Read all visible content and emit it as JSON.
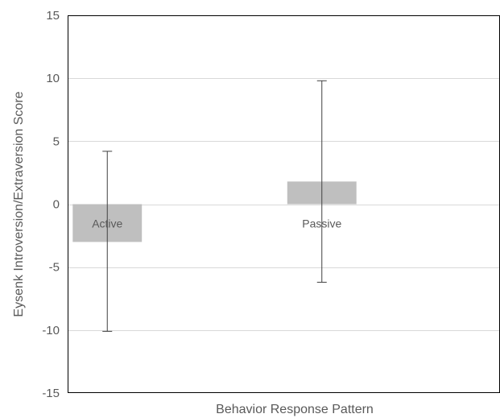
{
  "chart_data": {
    "type": "bar",
    "xlabel": "Behavior Response Pattern",
    "ylabel": "Eysenk Introversion/Extraversion Score",
    "ylim": [
      -15,
      15
    ],
    "yticks": [
      "15",
      "10",
      "5",
      "0",
      "-5",
      "-10",
      "-15"
    ],
    "ytick_values": [
      15,
      10,
      5,
      0,
      -5,
      -10,
      -15
    ],
    "grid": true,
    "categories": [
      "Active",
      "Passive"
    ],
    "values": [
      -3.0,
      1.8
    ],
    "error_bars": [
      {
        "low": -10.1,
        "high": 4.2
      },
      {
        "low": -6.2,
        "high": 9.8
      }
    ],
    "bar_color": "#bfbfbf"
  }
}
